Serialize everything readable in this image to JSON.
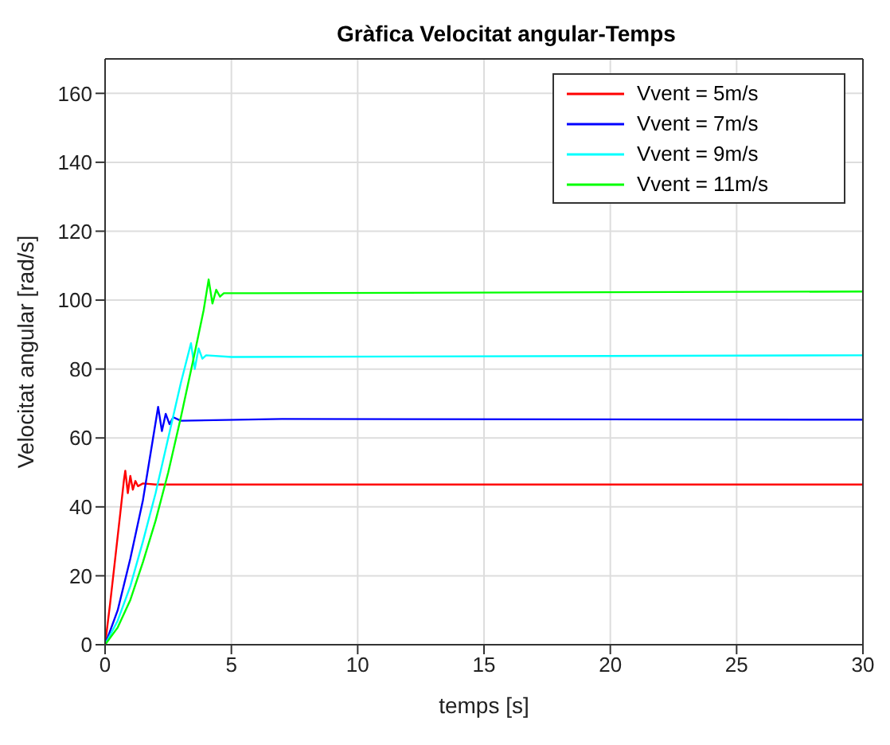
{
  "chart_data": {
    "type": "line",
    "title": "Gràfica Velocitat angular-Temps",
    "xlabel": "temps [s]",
    "ylabel": "Velocitat angular [rad/s]",
    "xlim": [
      0,
      30
    ],
    "xticks": [
      0,
      5,
      10,
      15,
      20,
      25,
      30
    ],
    "ylim": [
      0,
      170
    ],
    "yticks": [
      0,
      20,
      40,
      60,
      80,
      100,
      120,
      140,
      160
    ],
    "grid": true,
    "legend": "top right",
    "marker": "none",
    "line_style": "solid",
    "series": [
      {
        "name": "Vvent = 5m/s",
        "color": "#ff0000",
        "x": [
          0,
          0.2,
          0.4,
          0.6,
          0.75,
          0.8,
          0.9,
          1.0,
          1.1,
          1.2,
          1.3,
          1.5,
          2,
          30
        ],
        "values": [
          0,
          12,
          25,
          38,
          48,
          50.5,
          44,
          49,
          45,
          47.5,
          46,
          46.8,
          46.5,
          46.5
        ]
      },
      {
        "name": "Vvent = 7m/s",
        "color": "#0000ff",
        "x": [
          0,
          0.5,
          1,
          1.5,
          1.9,
          2.1,
          2.25,
          2.4,
          2.55,
          2.7,
          3,
          7,
          30
        ],
        "values": [
          0,
          10,
          25,
          42,
          60,
          69,
          62,
          67,
          64,
          66,
          65,
          65.5,
          65.3
        ]
      },
      {
        "name": "Vvent = 9m/s",
        "color": "#00ffff",
        "x": [
          0,
          0.5,
          1,
          1.5,
          2,
          2.5,
          3,
          3.4,
          3.55,
          3.7,
          3.85,
          4,
          5,
          30
        ],
        "values": [
          0,
          7,
          17,
          30,
          44,
          60,
          76,
          87.5,
          80,
          86,
          83,
          84,
          83.5,
          84
        ]
      },
      {
        "name": "Vvent = 11m/s",
        "color": "#00ff00",
        "x": [
          0,
          0.5,
          1,
          1.5,
          2,
          2.5,
          3,
          3.5,
          3.9,
          4.1,
          4.25,
          4.4,
          4.55,
          4.7,
          6,
          30
        ],
        "values": [
          0,
          5,
          13,
          24,
          36,
          50,
          66,
          83,
          97,
          106,
          99,
          103,
          101,
          102,
          102,
          102.5
        ]
      }
    ]
  }
}
